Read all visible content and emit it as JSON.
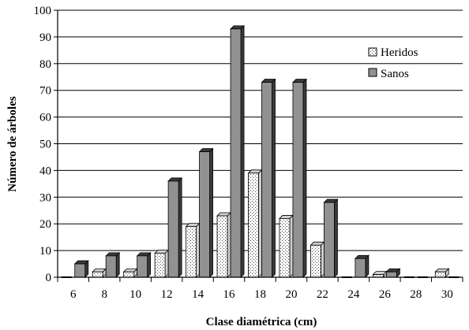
{
  "chart_data": {
    "type": "bar",
    "title": "",
    "xlabel": "Clase diamétrica (cm)",
    "ylabel": "Número de árboles",
    "categories": [
      "6",
      "8",
      "10",
      "12",
      "14",
      "16",
      "18",
      "20",
      "22",
      "24",
      "26",
      "28",
      "30"
    ],
    "series": [
      {
        "name": "Heridos",
        "values": [
          0,
          2,
          2,
          9,
          19,
          23,
          39,
          22,
          12,
          0,
          1,
          0,
          2
        ],
        "pattern": "dotted",
        "color": "#ffffff"
      },
      {
        "name": "Sanos",
        "values": [
          5,
          8,
          8,
          36,
          47,
          93,
          73,
          73,
          28,
          7,
          2,
          0,
          0
        ],
        "pattern": "crosshatch",
        "color": "#808080"
      }
    ],
    "ylim": [
      0,
      100
    ],
    "ytick_step": 10,
    "grid": true,
    "legend_position": "top-right",
    "style": "3d-shadowed-bars"
  }
}
